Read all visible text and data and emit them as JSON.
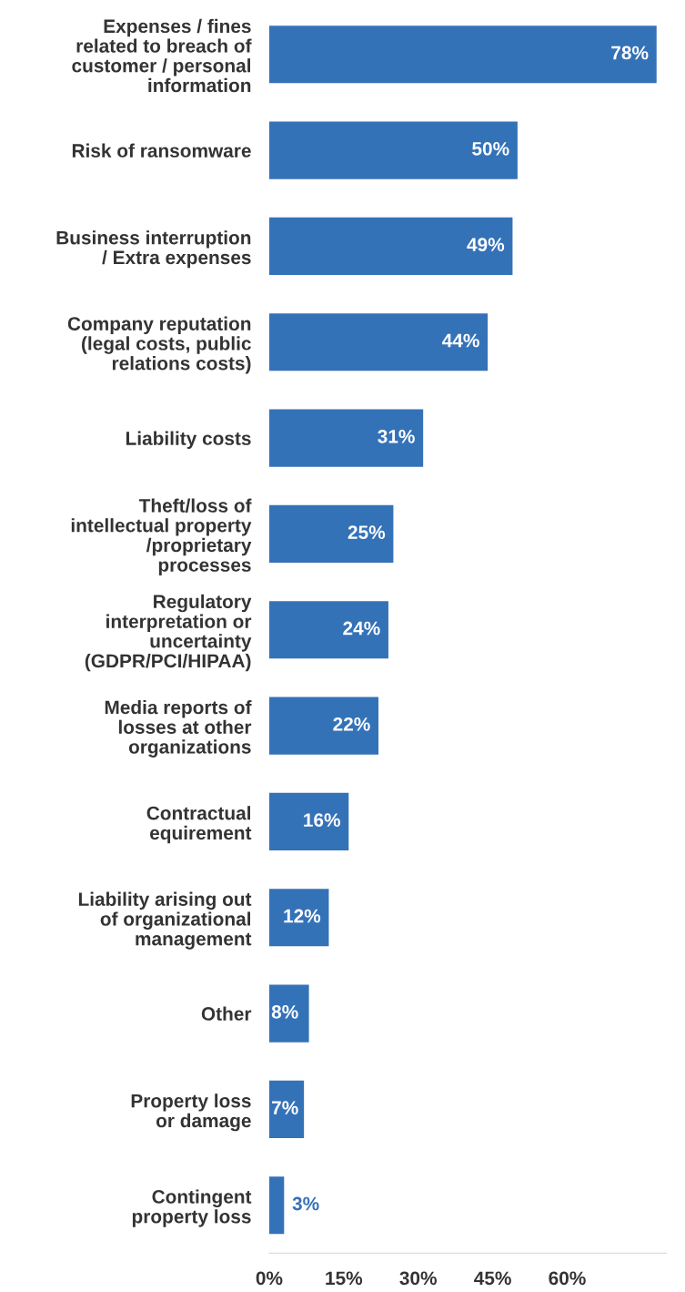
{
  "chart_data": {
    "type": "bar",
    "orientation": "horizontal",
    "categories": [
      "Expenses / fines\nrelated to breach of\ncustomer / personal\ninformation",
      "Risk of ransomware",
      "Business interruption\n/ Extra expenses",
      "Company reputation\n(legal costs, public\nrelations costs)",
      "Liability costs",
      "Theft/loss of\nintellectual property\n/proprietary\nprocesses",
      "Regulatory\ninterpretation or\nuncertainty\n(GDPR/PCI/HIPAA)",
      "Media reports of\nlosses at other\norganizations",
      "Contractual\nequirement",
      "Liability arising out\nof organizational\nmanagement",
      "Other",
      "Property loss\nor damage",
      "Contingent\nproperty loss"
    ],
    "values": [
      78,
      50,
      49,
      44,
      31,
      25,
      24,
      22,
      16,
      12,
      8,
      7,
      3
    ],
    "value_labels": [
      "78%",
      "50%",
      "49%",
      "44%",
      "31%",
      "25%",
      "24%",
      "22%",
      "16%",
      "12%",
      "8%",
      "7%",
      "3%"
    ],
    "color": "#3472b8",
    "xlim": [
      0,
      80
    ],
    "xticks": [
      {
        "value": 0,
        "label": "0%"
      },
      {
        "value": 15,
        "label": "15%"
      },
      {
        "value": 30,
        "label": "30%"
      },
      {
        "value": 45,
        "label": "45%"
      },
      {
        "value": 60,
        "label": "60%"
      }
    ],
    "grid": false,
    "legend": false
  }
}
